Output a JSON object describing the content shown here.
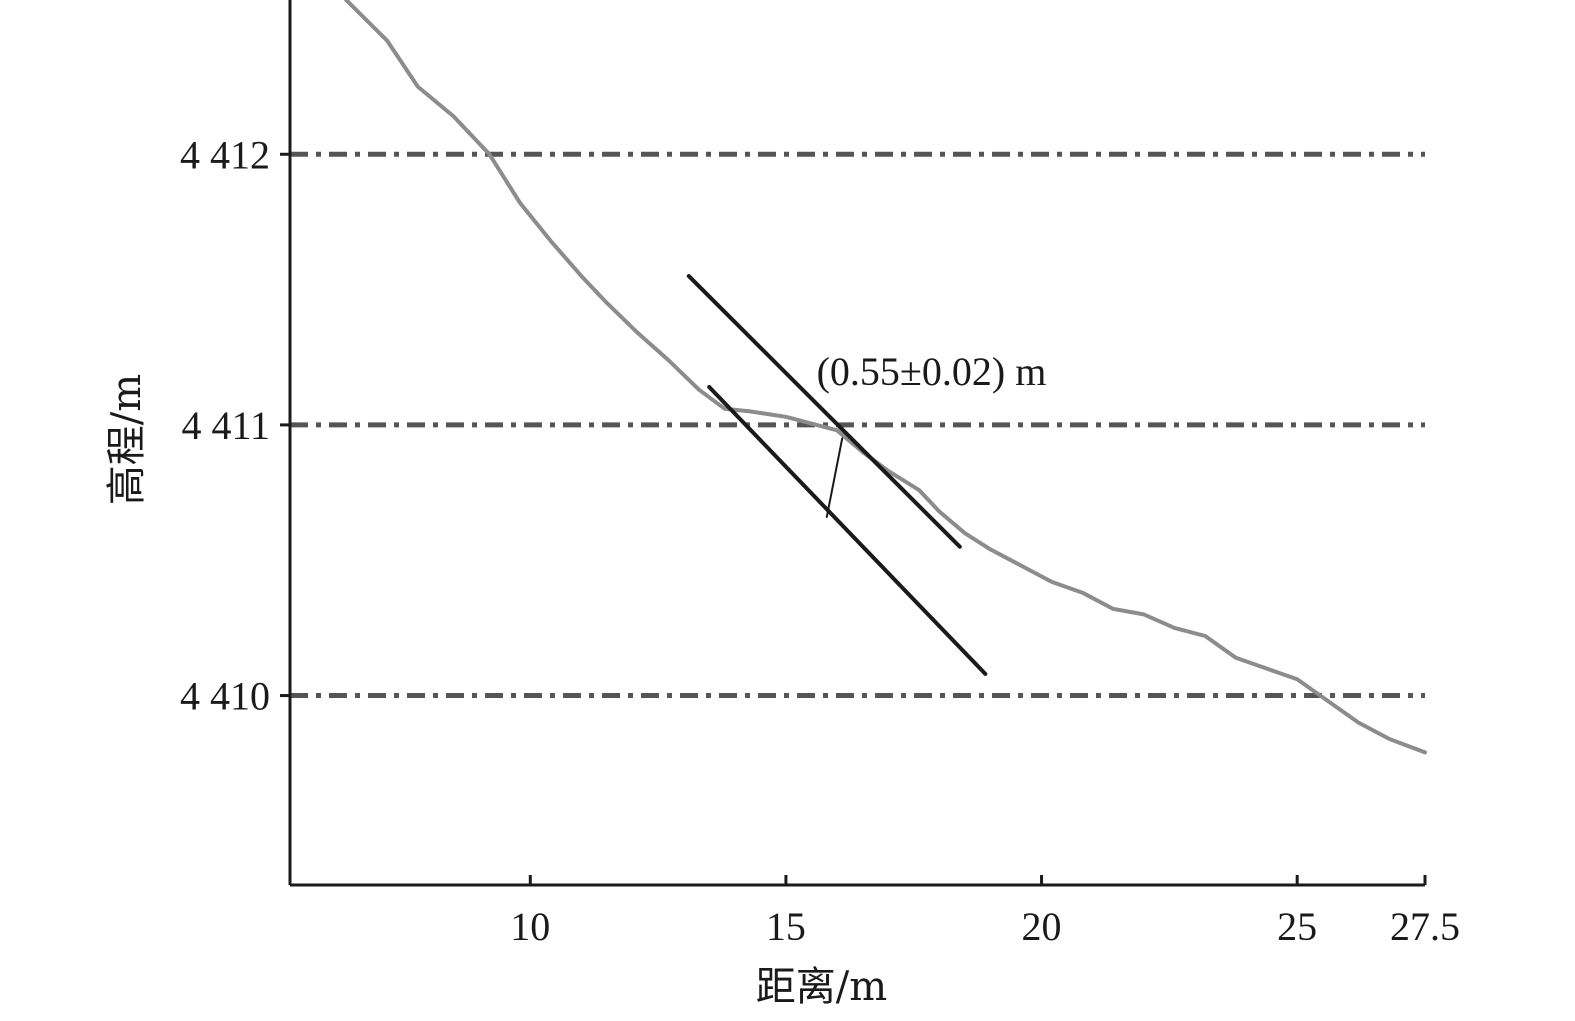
{
  "chart_data": {
    "type": "line",
    "title": "",
    "xlabel": "距离/m",
    "ylabel": "高程/m",
    "xlim": [
      5.3,
      27.5
    ],
    "ylim": [
      4409.3,
      4412.57
    ],
    "x_ticks": [
      10,
      15,
      20,
      25,
      27.5
    ],
    "x_tick_labels": [
      "10",
      "15",
      "20",
      "25",
      "27.5"
    ],
    "y_ticks": [
      4410,
      4411,
      4412
    ],
    "y_tick_labels": [
      "4 410",
      "4 411",
      "4 412"
    ],
    "grid": "horizontal dash-dot at y ticks",
    "series": [
      {
        "role": "terrain-profile",
        "color": "#8c8c8c",
        "x": [
          6.4,
          7.2,
          7.8,
          8.5,
          9.2,
          9.8,
          10.4,
          11.0,
          11.5,
          12.1,
          12.7,
          13.3,
          13.8,
          14.3,
          15.0,
          15.6,
          16.0,
          16.5,
          17.0,
          17.6,
          18.0,
          18.5,
          19.0,
          19.6,
          20.2,
          20.8,
          21.4,
          22.0,
          22.6,
          23.2,
          23.8,
          24.4,
          25.0,
          25.6,
          26.2,
          26.8,
          27.5
        ],
        "y": [
          4412.57,
          4412.42,
          4412.25,
          4412.14,
          4412.0,
          4411.82,
          4411.68,
          4411.55,
          4411.45,
          4411.34,
          4411.24,
          4411.13,
          4411.06,
          4411.05,
          4411.03,
          4411.0,
          4410.98,
          4410.9,
          4410.83,
          4410.76,
          4410.68,
          4410.6,
          4410.54,
          4410.48,
          4410.42,
          4410.38,
          4410.32,
          4410.3,
          4410.25,
          4410.22,
          4410.14,
          4410.1,
          4410.06,
          4409.98,
          4409.9,
          4409.84,
          4409.79
        ]
      },
      {
        "role": "upper-fitted-line",
        "color": "#1a1a1a",
        "x": [
          13.1,
          18.4
        ],
        "y": [
          4411.55,
          4410.55
        ]
      },
      {
        "role": "lower-fitted-line",
        "color": "#1a1a1a",
        "x": [
          13.5,
          18.9
        ],
        "y": [
          4411.14,
          4410.08
        ]
      },
      {
        "role": "offset-connector",
        "color": "#1a1a1a",
        "x": [
          16.1,
          15.8
        ],
        "y": [
          4410.95,
          4410.66
        ]
      }
    ],
    "annotations": [
      {
        "text": "(0.55±0.02) m",
        "x": 15.6,
        "y": 4411.2
      }
    ]
  }
}
